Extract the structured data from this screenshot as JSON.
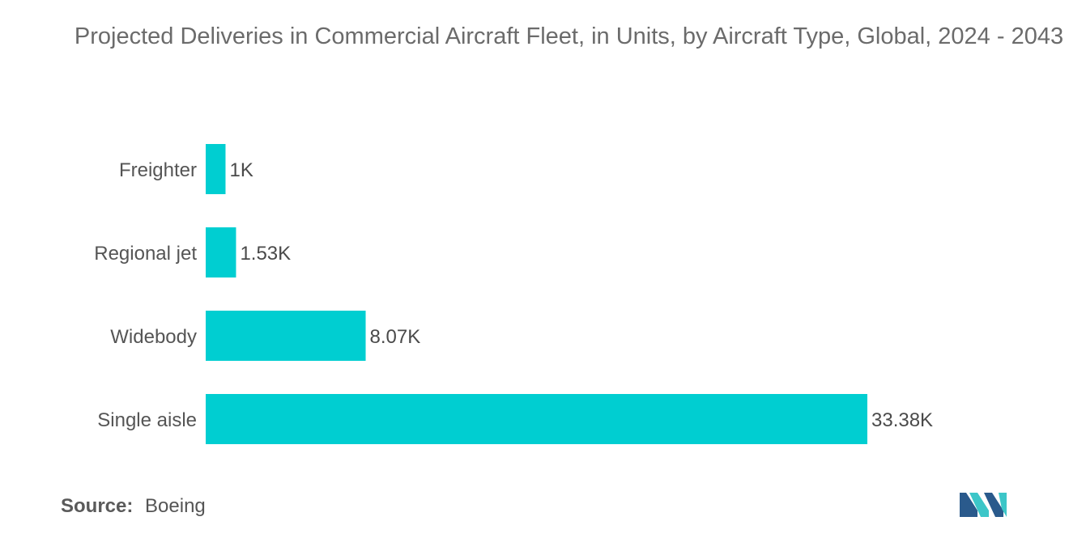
{
  "chart_data": {
    "type": "bar",
    "orientation": "horizontal",
    "title": "Projected Deliveries in Commercial Aircraft Fleet, in Units, by Aircraft Type, Global, 2024 - 2043",
    "categories": [
      "Freighter",
      "Regional jet",
      "Widebody",
      "Single aisle"
    ],
    "values": [
      1000,
      1530,
      8070,
      33380
    ],
    "value_labels": [
      "1K",
      "1.53K",
      "8.07K",
      "33.38K"
    ],
    "xlim": [
      0,
      33380
    ],
    "xlabel": "",
    "ylabel": "",
    "grid": false,
    "legend": "none"
  },
  "source": {
    "label": "Source:",
    "value": "Boeing"
  },
  "colors": {
    "bar": "#00ced1",
    "title": "#6b6b6b",
    "axis_text": "#555555",
    "logo_dark": "#2a5a8c",
    "logo_light": "#3cc6c8"
  }
}
